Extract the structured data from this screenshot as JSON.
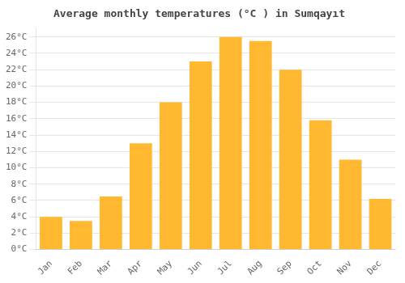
{
  "chart_data": {
    "type": "bar",
    "title": "Average monthly temperatures (°C ) in Sumqayıt",
    "categories": [
      "Jan",
      "Feb",
      "Mar",
      "Apr",
      "May",
      "Jun",
      "Jul",
      "Aug",
      "Sep",
      "Oct",
      "Nov",
      "Dec"
    ],
    "values": [
      4.0,
      3.5,
      6.5,
      13.0,
      18.0,
      23.0,
      26.0,
      25.5,
      22.0,
      15.8,
      11.0,
      6.2
    ],
    "color": "#FFB830",
    "ylim": [
      0,
      27
    ],
    "yticks": [
      {
        "value": 0,
        "label": "0°C"
      },
      {
        "value": 2,
        "label": "2°C"
      },
      {
        "value": 4,
        "label": "4°C"
      },
      {
        "value": 6,
        "label": "6°C"
      },
      {
        "value": 8,
        "label": "8°C"
      },
      {
        "value": 10,
        "label": "10°C"
      },
      {
        "value": 12,
        "label": "12°C"
      },
      {
        "value": 14,
        "label": "14°C"
      },
      {
        "value": 16,
        "label": "16°C"
      },
      {
        "value": 18,
        "label": "18°C"
      },
      {
        "value": 20,
        "label": "20°C"
      },
      {
        "value": 22,
        "label": "22°C"
      },
      {
        "value": 24,
        "label": "24°C"
      },
      {
        "value": 26,
        "label": "26°C"
      }
    ],
    "grid": true
  }
}
